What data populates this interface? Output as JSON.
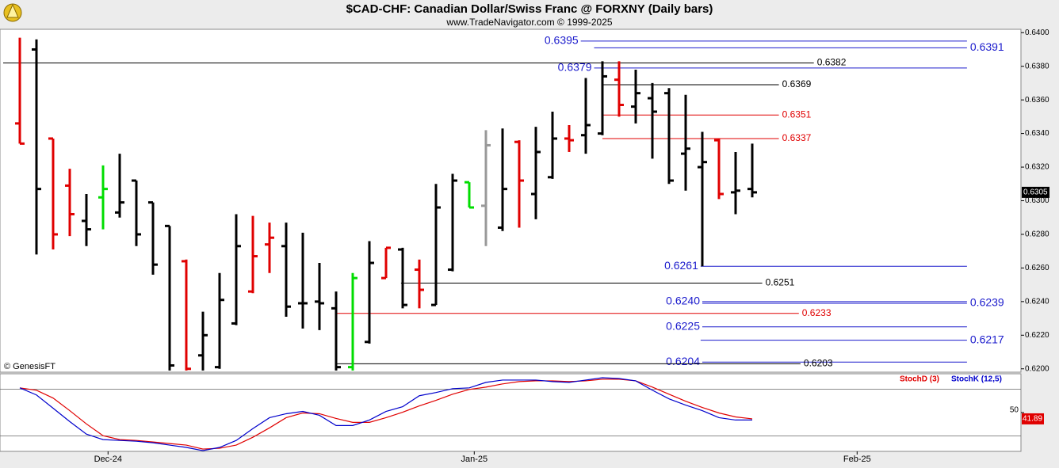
{
  "title": "$CAD-CHF:  Canadian Dollar/Swiss Franc @ FORXNY  (Daily bars)",
  "subtitle": "www.TradeNavigator.com © 1999-2025",
  "chart_data": [
    {
      "type": "ohlc",
      "source": "© GenesisFT",
      "open": [
        0.6346,
        0.639,
        0.6337,
        0.6309,
        0.6288,
        0.6302,
        0.6293,
        0.6312,
        0.6299,
        0.6285,
        0.6264,
        0.6208,
        0.6201,
        0.6227,
        0.6246,
        0.6274,
        0.6273,
        0.6239,
        0.624,
        0.6236,
        0.6201,
        0.6216,
        0.6254,
        0.6271,
        0.6259,
        0.6238,
        0.6259,
        0.6311,
        0.6297,
        0.6284,
        0.6335,
        0.6304,
        0.6314,
        0.6337,
        0.6339,
        0.634,
        0.6372,
        0.6356,
        0.6361,
        0.6364,
        0.6328,
        0.632,
        0.6336,
        0.6305,
        0.6307
      ],
      "high": [
        0.6397,
        0.6396,
        0.6337,
        0.6319,
        0.6304,
        0.6321,
        0.6328,
        0.6312,
        0.6299,
        0.6285,
        0.6265,
        0.6234,
        0.6257,
        0.6292,
        0.6291,
        0.6287,
        0.6287,
        0.6281,
        0.6263,
        0.6246,
        0.6257,
        0.6276,
        0.6272,
        0.6272,
        0.6265,
        0.631,
        0.6316,
        0.6311,
        0.6342,
        0.6343,
        0.6336,
        0.6344,
        0.6353,
        0.6345,
        0.6373,
        0.6383,
        0.6383,
        0.6378,
        0.637,
        0.6367,
        0.6363,
        0.6341,
        0.6337,
        0.6329,
        0.6334
      ],
      "low": [
        0.6334,
        0.6268,
        0.6271,
        0.6279,
        0.6273,
        0.6283,
        0.629,
        0.6273,
        0.6256,
        0.6199,
        0.6199,
        0.6199,
        0.62,
        0.6226,
        0.6245,
        0.6257,
        0.6231,
        0.6224,
        0.6223,
        0.6199,
        0.6199,
        0.6215,
        0.6254,
        0.6236,
        0.6236,
        0.6238,
        0.6258,
        0.6296,
        0.6273,
        0.6282,
        0.6284,
        0.6289,
        0.6313,
        0.6329,
        0.6328,
        0.6339,
        0.635,
        0.6346,
        0.6325,
        0.631,
        0.6306,
        0.6261,
        0.6301,
        0.6292,
        0.6302
      ],
      "close": [
        0.6334,
        0.6307,
        0.628,
        0.6292,
        0.6283,
        0.6307,
        0.6299,
        0.628,
        0.6262,
        0.6202,
        0.62,
        0.622,
        0.6241,
        0.6273,
        0.6267,
        0.6278,
        0.6237,
        0.6239,
        0.6239,
        0.6201,
        0.6254,
        0.6263,
        0.6272,
        0.6238,
        0.6247,
        0.6296,
        0.6312,
        0.6296,
        0.6333,
        0.6307,
        0.6312,
        0.6329,
        0.6337,
        0.6336,
        0.6345,
        0.6374,
        0.6357,
        0.6364,
        0.6353,
        0.6312,
        0.6331,
        0.6323,
        0.6304,
        0.6306,
        0.6305
      ],
      "colors": [
        "#e00000",
        "#000000",
        "#e00000",
        "#e00000",
        "#000000",
        "#00dd00",
        "#000000",
        "#000000",
        "#000000",
        "#000000",
        "#e00000",
        "#000000",
        "#000000",
        "#000000",
        "#e00000",
        "#e00000",
        "#000000",
        "#000000",
        "#000000",
        "#000000",
        "#00dd00",
        "#000000",
        "#e00000",
        "#000000",
        "#e00000",
        "#000000",
        "#000000",
        "#00dd00",
        "#999999",
        "#000000",
        "#e00000",
        "#000000",
        "#000000",
        "#e00000",
        "#000000",
        "#000000",
        "#e00000",
        "#000000",
        "#000000",
        "#000000",
        "#000000",
        "#000000",
        "#e00000",
        "#000000",
        "#000000"
      ],
      "xlim": [
        -1,
        60
      ],
      "xticks": [
        {
          "value": 5.3,
          "label": "Dec-24"
        },
        {
          "value": 27.3,
          "label": "Jan-25"
        },
        {
          "value": 50.3,
          "label": "Feb-25"
        }
      ],
      "ylim": [
        0.6198,
        0.6402
      ],
      "yticks": [
        {
          "value": 0.62,
          "label": "0.6200"
        },
        {
          "value": 0.622,
          "label": "0.6220"
        },
        {
          "value": 0.624,
          "label": "0.6240"
        },
        {
          "value": 0.626,
          "label": "0.6260"
        },
        {
          "value": 0.628,
          "label": "0.6280"
        },
        {
          "value": 0.63,
          "label": "0.6300"
        },
        {
          "value": 0.632,
          "label": "0.6320"
        },
        {
          "value": 0.634,
          "label": "0.6340"
        },
        {
          "value": 0.636,
          "label": "0.6360"
        },
        {
          "value": 0.638,
          "label": "0.6380"
        },
        {
          "value": 0.64,
          "label": "0.6400"
        }
      ],
      "levels": [
        {
          "value": 0.6395,
          "color": "#1a1acc",
          "start": 33.7,
          "end": 56.9,
          "side": "left"
        },
        {
          "value": 0.6391,
          "color": "#1a1acc",
          "start": 34.5,
          "end": 56.9,
          "side": "right"
        },
        {
          "value": 0.6382,
          "color": "#000000",
          "start": -1,
          "end": 47.7,
          "side": "right"
        },
        {
          "value": 0.6379,
          "color": "#1a1acc",
          "start": 34.5,
          "end": 56.9,
          "side": "left"
        },
        {
          "value": 0.6369,
          "color": "#000000",
          "start": 35,
          "end": 45.6,
          "side": "right"
        },
        {
          "value": 0.6351,
          "color": "#e00000",
          "start": 35,
          "end": 45.6,
          "side": "right"
        },
        {
          "value": 0.6337,
          "color": "#e00000",
          "start": 35,
          "end": 45.6,
          "side": "right"
        },
        {
          "value": 0.6261,
          "color": "#1a1acc",
          "start": 40.9,
          "end": 56.9,
          "side": "left"
        },
        {
          "value": 0.6251,
          "color": "#000000",
          "start": 22.9,
          "end": 44.6,
          "side": "right"
        },
        {
          "value": 0.624,
          "label": "0.6240",
          "color": "#1a1acc",
          "start": 41,
          "end": 56.9,
          "side": "left"
        },
        {
          "value": 0.6239,
          "color": "#1a1acc",
          "start": 41,
          "end": 56.9,
          "side": "right"
        },
        {
          "value": 0.6233,
          "color": "#e00000",
          "start": 19,
          "end": 46.8,
          "side": "right"
        },
        {
          "value": 0.6225,
          "color": "#1a1acc",
          "start": 41,
          "end": 56.9,
          "side": "left"
        },
        {
          "value": 0.6217,
          "color": "#1a1acc",
          "start": 40.9,
          "end": 56.9,
          "side": "right"
        },
        {
          "value": 0.6204,
          "color": "#1a1acc",
          "start": 41,
          "end": 56.9,
          "side": "left"
        },
        {
          "value": 0.6203,
          "color": "#000000",
          "start": 19,
          "end": 46.9,
          "side": "right"
        }
      ]
    },
    {
      "type": "line",
      "series": [
        {
          "name": "StochD (3)",
          "color": "#e00000",
          "values": [
            81.8,
            78.8,
            68.7,
            52.5,
            35.4,
            20.2,
            15.2,
            14.1,
            12.1,
            10.1,
            8.1,
            3.0,
            4.0,
            8.1,
            18.2,
            30.3,
            43.4,
            49.5,
            48.5,
            42.4,
            37.4,
            37.4,
            43.4,
            50.5,
            58.6,
            65.7,
            73.7,
            79.8,
            82.8,
            86.9,
            89.9,
            90.9,
            90.9,
            89.9,
            90.9,
            92.9,
            92.9,
            90.9,
            82.8,
            73.7,
            64.6,
            56.6,
            49.5,
            44.4,
            41.89
          ]
        },
        {
          "name": "StochK (12,5)",
          "color": "#0000cc",
          "values": [
            81.8,
            72.7,
            55.6,
            38.4,
            22.2,
            15.2,
            14.1,
            13.1,
            11.1,
            8.1,
            5.1,
            1.0,
            5.1,
            14.1,
            29.3,
            43.4,
            48.5,
            51.5,
            46.5,
            33.3,
            33.3,
            40.4,
            51.5,
            57.6,
            71.7,
            75.8,
            80.8,
            81.8,
            88.9,
            91.9,
            91.9,
            91.9,
            89.9,
            88.9,
            91.9,
            94.9,
            93.9,
            90.9,
            78.8,
            67.7,
            59.6,
            52.5,
            43.4,
            40.4,
            40.4
          ]
        }
      ],
      "ylim": [
        0,
        100
      ],
      "yticks": [
        50
      ],
      "levels": [
        20,
        80
      ]
    }
  ]
}
